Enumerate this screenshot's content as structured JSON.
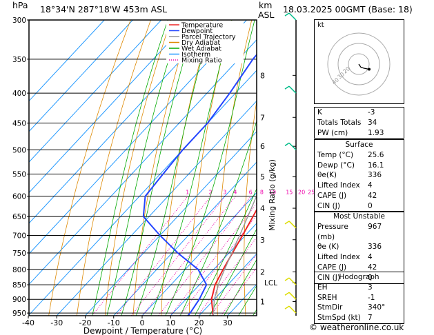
{
  "header": {
    "hpa": "hPa",
    "location": "18°34'N  287°18'W  453m  ASL",
    "km": "km",
    "asl": "ASL",
    "datetime": "18.03.2025  00GMT  (Base: 18)"
  },
  "footer": "© weatheronline.co.uk",
  "chart_data": {
    "type": "line",
    "title": "",
    "xlabel": "Dewpoint / Temperature (°C)",
    "ylabel": "hPa",
    "mixing_ratio_axis_label": "Mixing Ratio (g/kg)",
    "x_ticks": [
      -40,
      -30,
      -20,
      -10,
      0,
      10,
      20,
      30
    ],
    "xlim": [
      -40,
      40
    ],
    "y_ticks": [
      300,
      350,
      400,
      450,
      500,
      550,
      600,
      650,
      700,
      750,
      800,
      850,
      900,
      950
    ],
    "ylim": [
      300,
      960
    ],
    "y_scale": "log",
    "km_ticks": [
      {
        "p": 373,
        "label": "8"
      },
      {
        "p": 440,
        "label": "7"
      },
      {
        "p": 493,
        "label": "6"
      },
      {
        "p": 556,
        "label": "5"
      },
      {
        "p": 629,
        "label": "4"
      },
      {
        "p": 712,
        "label": "3"
      },
      {
        "p": 808,
        "label": "2"
      },
      {
        "p": 908,
        "label": "1"
      }
    ],
    "lcl": {
      "p": 843,
      "label": "LCL"
    },
    "mixing_ratio_labels": [
      "1",
      "2",
      "3",
      "4",
      "6",
      "8",
      "10",
      "15",
      "20",
      "25"
    ],
    "mixing_ratio_values": [
      1,
      2,
      3,
      4,
      6,
      8,
      10,
      15,
      20,
      25
    ],
    "legend": [
      "Temperature",
      "Dewpoint",
      "Parcel Trajectory",
      "Dry Adiabat",
      "Wet Adiabat",
      "Isotherm",
      "Mixing Ratio"
    ],
    "series": [
      {
        "name": "Temperature",
        "color": "#ee2222",
        "points": [
          [
            967,
            25.6
          ],
          [
            950,
            24
          ],
          [
            900,
            19
          ],
          [
            850,
            15.5
          ],
          [
            800,
            13.3
          ],
          [
            750,
            11.2
          ],
          [
            700,
            9
          ],
          [
            650,
            6.5
          ],
          [
            600,
            3.8
          ],
          [
            550,
            0.2
          ],
          [
            500,
            -4.2
          ],
          [
            450,
            -9.4
          ],
          [
            400,
            -15.8
          ],
          [
            350,
            -23.5
          ],
          [
            300,
            -33
          ]
        ]
      },
      {
        "name": "Dewpoint",
        "color": "#2244ff",
        "points": [
          [
            967,
            16.1
          ],
          [
            950,
            16
          ],
          [
            900,
            14.7
          ],
          [
            850,
            12.5
          ],
          [
            800,
            4.5
          ],
          [
            750,
            -8
          ],
          [
            700,
            -20
          ],
          [
            650,
            -32
          ],
          [
            600,
            -38
          ],
          [
            550,
            -39
          ],
          [
            500,
            -40
          ],
          [
            450,
            -40
          ],
          [
            400,
            -42
          ],
          [
            350,
            -45
          ],
          [
            300,
            -46
          ]
        ]
      },
      {
        "name": "Parcel Trajectory",
        "color": "#999999",
        "points": [
          [
            967,
            25.6
          ],
          [
            900,
            20
          ],
          [
            843,
            16.2
          ],
          [
            800,
            13.8
          ],
          [
            750,
            11
          ],
          [
            700,
            8
          ],
          [
            650,
            4.7
          ],
          [
            600,
            1.1
          ],
          [
            550,
            -3
          ],
          [
            500,
            -7.5
          ],
          [
            450,
            -12.7
          ],
          [
            400,
            -19
          ],
          [
            350,
            -26.5
          ],
          [
            300,
            -36
          ]
        ]
      }
    ],
    "colors": {
      "dry_adiabat": "#dd8800",
      "wet_adiabat": "#00aa00",
      "isotherm": "#2299ff",
      "mixing_ratio": "#ee00aa"
    },
    "wind_barb_colors": {
      "upper": "#00bb88",
      "lower": "#dddd00"
    }
  },
  "hodograph": {
    "label": "kt",
    "ring_labels": [
      "20",
      "30",
      "40"
    ],
    "points": [
      [
        0,
        0
      ],
      [
        2,
        -3
      ],
      [
        5,
        -4
      ],
      [
        10,
        -5
      ]
    ]
  },
  "indices": [
    {
      "label": "K",
      "value": "-3"
    },
    {
      "label": "Totals Totals",
      "value": "34"
    },
    {
      "label": "PW (cm)",
      "value": "1.93"
    }
  ],
  "surface": {
    "title": "Surface",
    "rows": [
      {
        "label": "Temp (°C)",
        "value": "25.6"
      },
      {
        "label": "Dewp (°C)",
        "value": "16.1"
      },
      {
        "label": "θe(K)",
        "value": "336"
      },
      {
        "label": "Lifted Index",
        "value": "4"
      },
      {
        "label": "CAPE (J)",
        "value": "42"
      },
      {
        "label": "CIN (J)",
        "value": "0"
      }
    ]
  },
  "most_unstable": {
    "title": "Most Unstable",
    "rows": [
      {
        "label": "Pressure (mb)",
        "value": "967"
      },
      {
        "label": "θe (K)",
        "value": "336"
      },
      {
        "label": "Lifted Index",
        "value": "4"
      },
      {
        "label": "CAPE (J)",
        "value": "42"
      },
      {
        "label": "CIN (J)",
        "value": "0"
      }
    ]
  },
  "hodograph_table": {
    "title": "Hodograph",
    "rows": [
      {
        "label": "EH",
        "value": "3"
      },
      {
        "label": "SREH",
        "value": "-1"
      },
      {
        "label": "StmDir",
        "value": "340°"
      },
      {
        "label": "StmSpd (kt)",
        "value": "7"
      }
    ]
  }
}
